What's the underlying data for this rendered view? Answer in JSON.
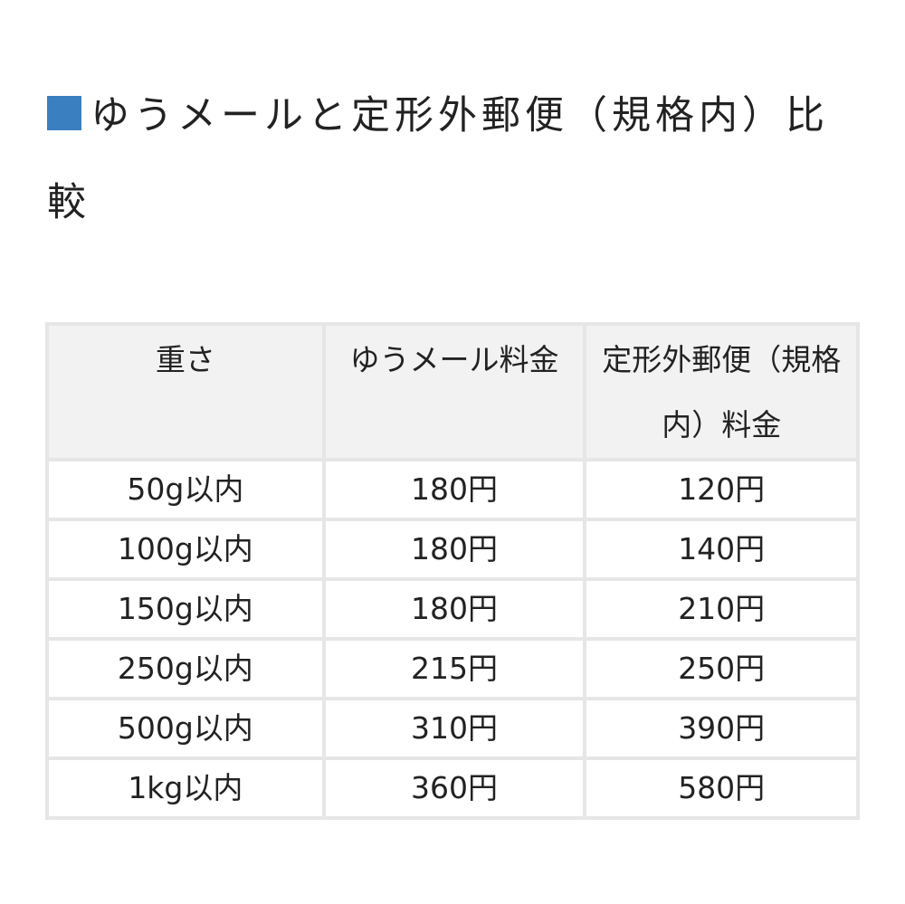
{
  "title": {
    "text": "ゆうメールと定形外郵便（規格内）比較",
    "marker_color": "#3a7fbf"
  },
  "table": {
    "headers": [
      "重さ",
      "ゆうメール料金",
      "定形外郵便（規格内）料金"
    ],
    "rows": [
      [
        "50g以内",
        "180円",
        "120円"
      ],
      [
        "100g以内",
        "180円",
        "140円"
      ],
      [
        "150g以内",
        "180円",
        "210円"
      ],
      [
        "250g以内",
        "215円",
        "250円"
      ],
      [
        "500g以内",
        "310円",
        "390円"
      ],
      [
        "1kg以内",
        "360円",
        "580円"
      ]
    ]
  }
}
